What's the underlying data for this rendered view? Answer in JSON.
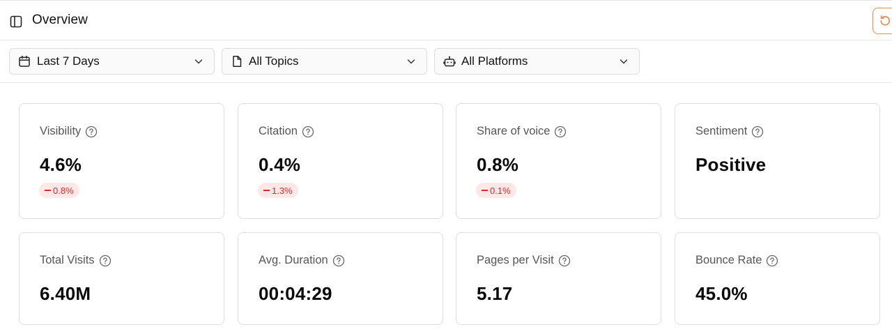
{
  "header": {
    "title": "Overview",
    "sidebar_toggle_icon": "sidebar-panel-icon",
    "refresh_icon": "refresh-icon",
    "accent_color": "#f08a4b"
  },
  "filters": [
    {
      "label": "Last 7 Days",
      "icon": "calendar-icon"
    },
    {
      "label": "All Topics",
      "icon": "document-icon"
    },
    {
      "label": "All Platforms",
      "icon": "bot-icon"
    }
  ],
  "metrics_row1": [
    {
      "title": "Visibility",
      "value": "4.6%",
      "delta": "0.8%"
    },
    {
      "title": "Citation",
      "value": "0.4%",
      "delta": "1.3%"
    },
    {
      "title": "Share of voice",
      "value": "0.8%",
      "delta": "0.1%"
    },
    {
      "title": "Sentiment",
      "value": "Positive"
    }
  ],
  "metrics_row2": [
    {
      "title": "Total Visits",
      "value": "6.40M"
    },
    {
      "title": "Avg. Duration",
      "value": "00:04:29"
    },
    {
      "title": "Pages per Visit",
      "value": "5.17"
    },
    {
      "title": "Bounce Rate",
      "value": "45.0%"
    }
  ],
  "colors": {
    "negative_text": "#d42b2b",
    "negative_bg": "#fde7e7"
  }
}
